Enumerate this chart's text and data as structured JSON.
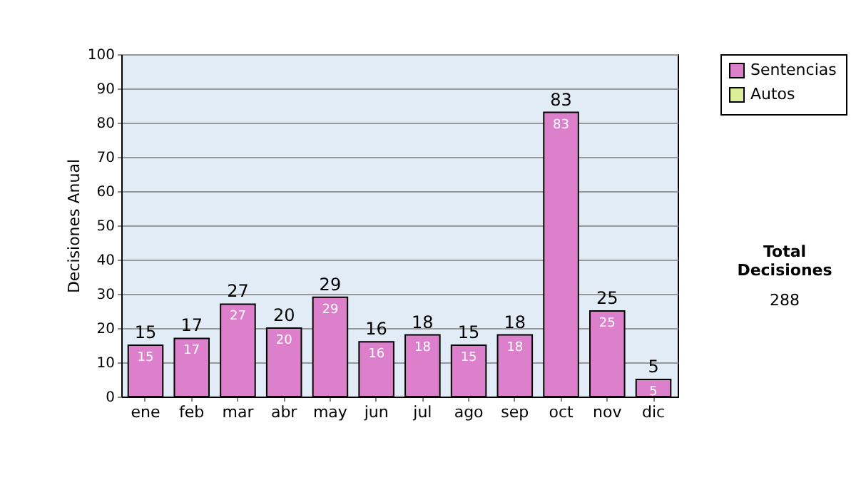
{
  "chart_data": {
    "type": "bar",
    "ylabel": "Decisiones Anual",
    "categories": [
      "ene",
      "feb",
      "mar",
      "abr",
      "may",
      "jun",
      "jul",
      "ago",
      "sep",
      "oct",
      "nov",
      "dic"
    ],
    "series": [
      {
        "name": "Sentencias",
        "color": "#dd80cc",
        "values": [
          15,
          17,
          27,
          20,
          29,
          16,
          18,
          15,
          18,
          83,
          25,
          5
        ],
        "value_labels": [
          "15",
          "17",
          "27",
          "20",
          "29",
          "16",
          "18",
          "15",
          "18",
          "83",
          "25",
          "5"
        ]
      },
      {
        "name": "Autos",
        "color": "#ddee99",
        "values": [
          null,
          null,
          null,
          null,
          null,
          null,
          null,
          null,
          null,
          null,
          null,
          null
        ]
      }
    ],
    "stacked": true,
    "totals": [
      "15",
      "17",
      "27",
      "20",
      "29",
      "16",
      "18",
      "15",
      "18",
      "83",
      "25",
      "5"
    ],
    "ylim": [
      0,
      100
    ],
    "yticks": [
      0,
      10,
      20,
      30,
      40,
      50,
      60,
      70,
      80,
      90,
      100
    ],
    "grid": "y",
    "legend": "right",
    "annotations": [
      "Total Decisiones",
      "288"
    ]
  }
}
